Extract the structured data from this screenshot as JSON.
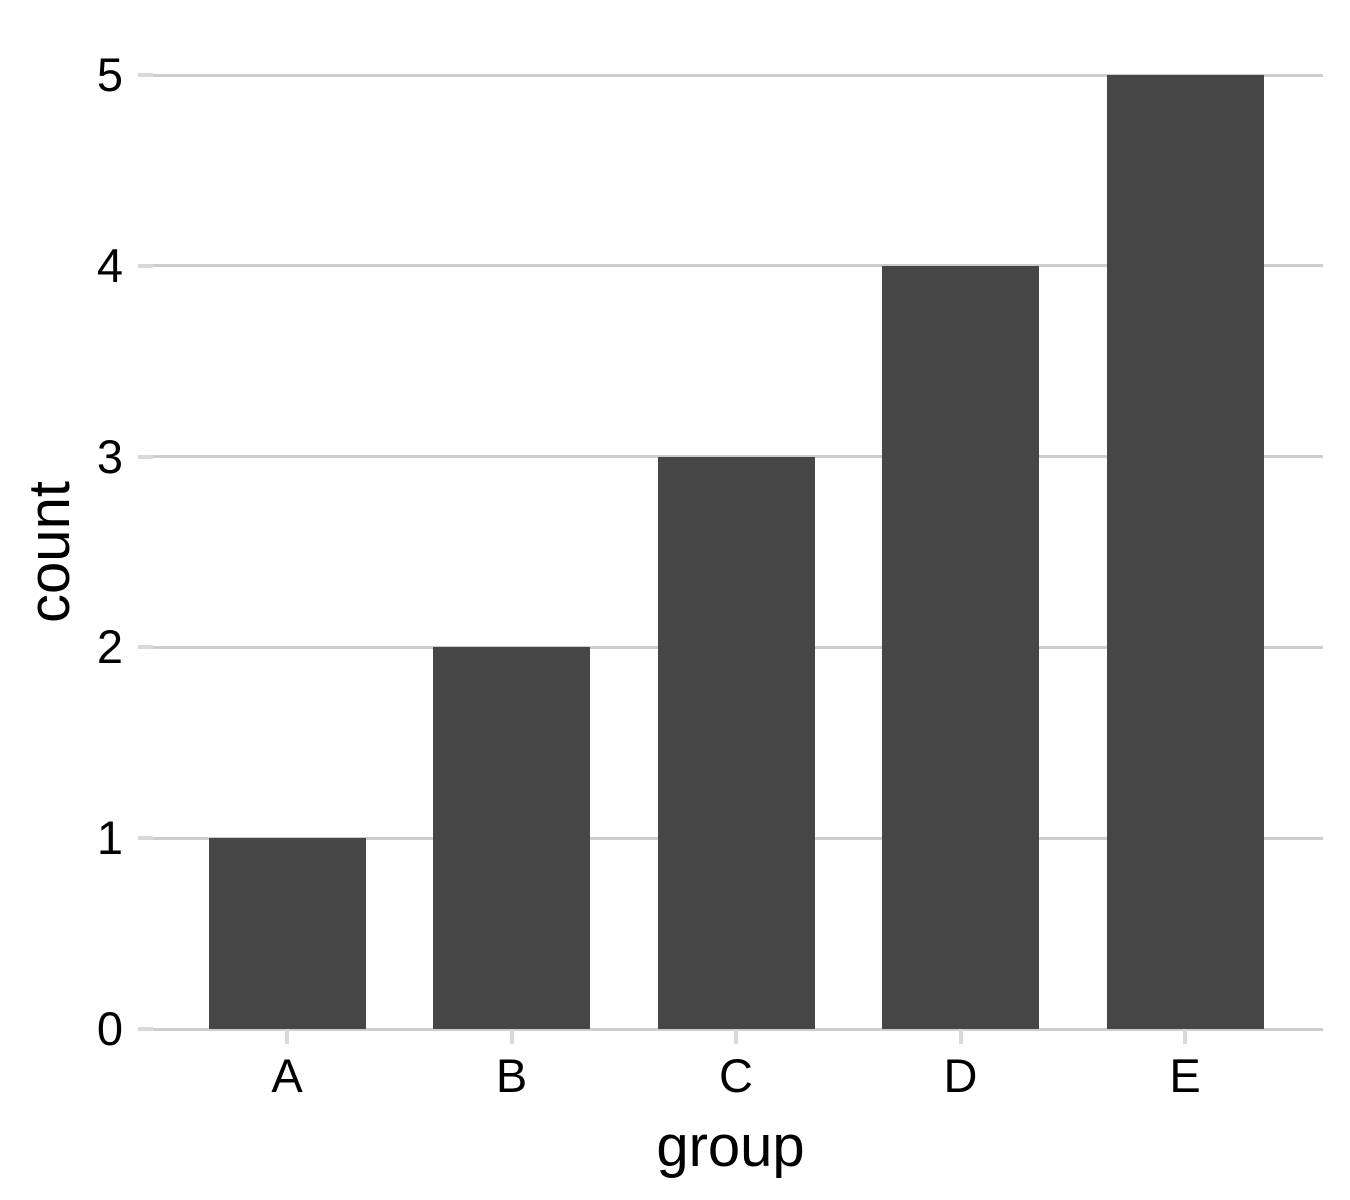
{
  "chart_data": {
    "type": "bar",
    "categories": [
      "A",
      "B",
      "C",
      "D",
      "E"
    ],
    "values": [
      1,
      2,
      3,
      4,
      5
    ],
    "title": "",
    "xlabel": "group",
    "ylabel": "count",
    "ylim": [
      0,
      5
    ],
    "yticks": [
      0,
      1,
      2,
      3,
      4,
      5
    ],
    "grid": "horizontal",
    "legend": "none",
    "colors": {
      "bar_fill": "#464646",
      "gridline": "#CDCDCD",
      "tick_mark": "#D9D9D9",
      "text": "#000000",
      "background": "#FFFFFF"
    }
  }
}
